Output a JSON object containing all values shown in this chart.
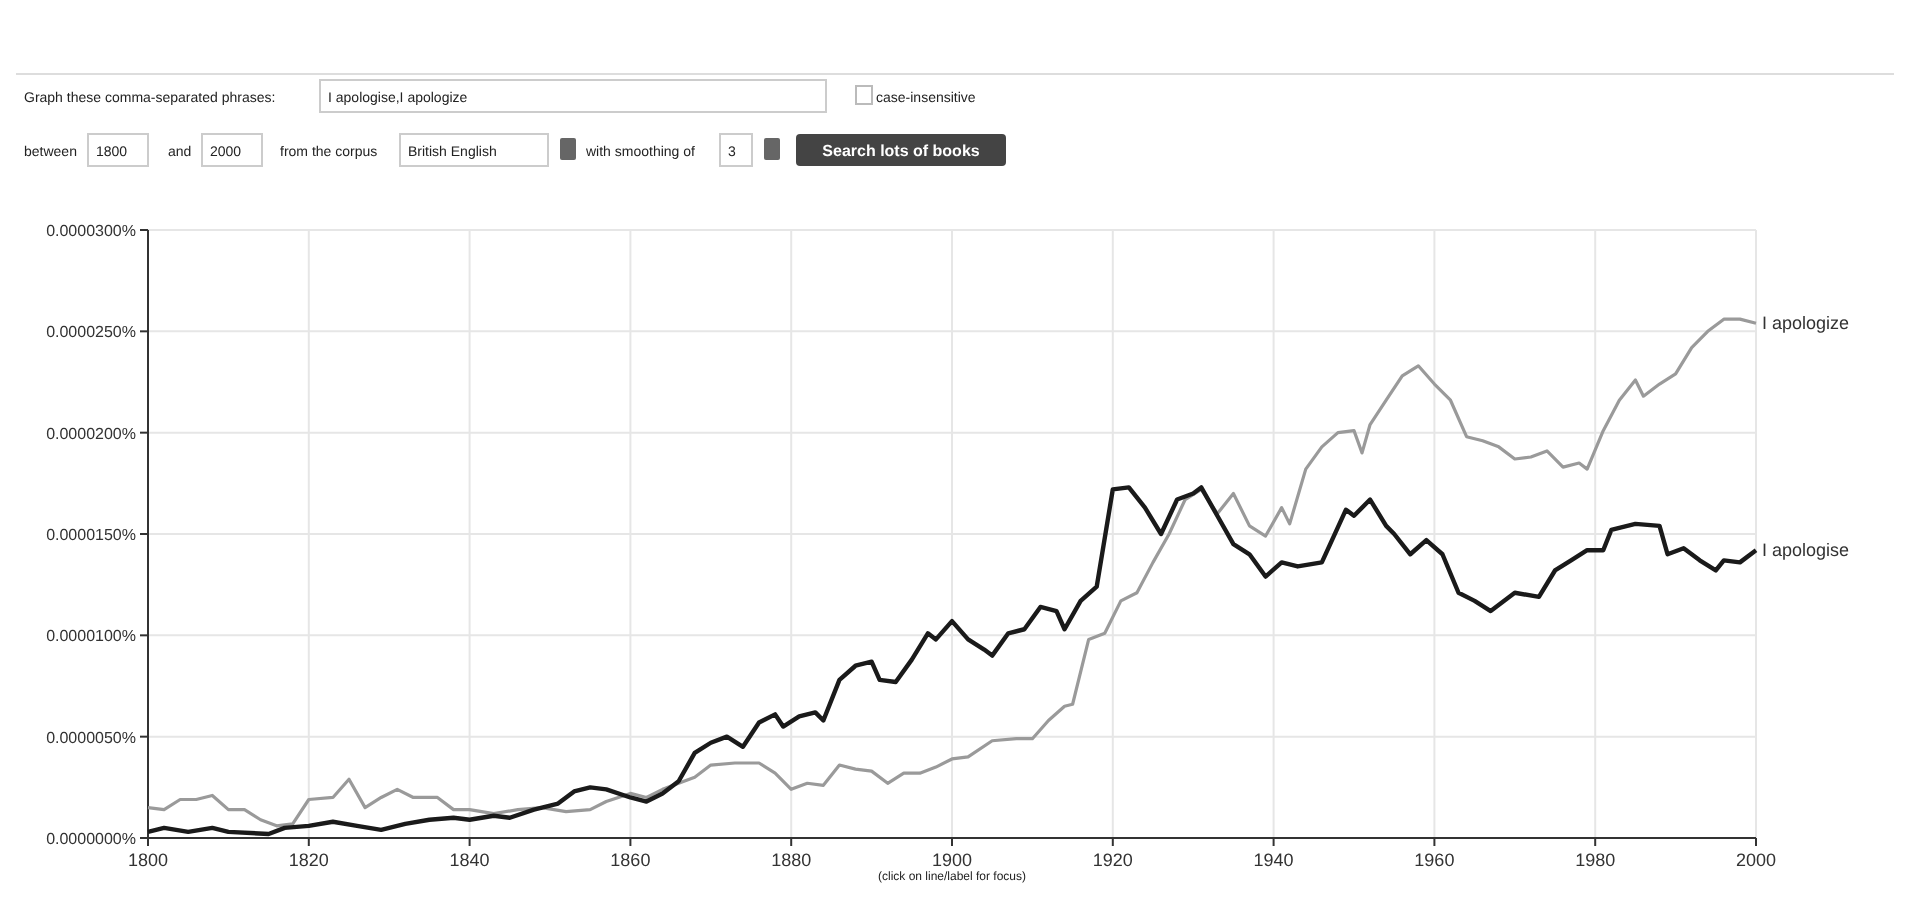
{
  "chart_data": {
    "type": "line",
    "annotations": [
      "Graph these comma-separated phrases:",
      "I apologise,I apologize",
      "case-insensitive",
      "between",
      "1800",
      "and",
      "2000",
      "from the corpus",
      "British English",
      "with smoothing of",
      "3",
      "Search lots of books",
      "(click on line/label for focus)"
    ],
    "xlim": [
      1800,
      2000
    ],
    "xticks": [
      1800,
      1820,
      1840,
      1860,
      1880,
      1900,
      1920,
      1940,
      1960,
      1980,
      2000
    ],
    "ylim": [
      0,
      3e-05
    ],
    "yticks": [
      {
        "value": 0,
        "label": "0.0000000%"
      },
      {
        "value": 5e-06,
        "label": "0.0000050%"
      },
      {
        "value": 1e-05,
        "label": "0.0000100%"
      },
      {
        "value": 1.5e-05,
        "label": "0.0000150%"
      },
      {
        "value": 2e-05,
        "label": "0.0000200%"
      },
      {
        "value": 2.5e-05,
        "label": "0.0000250%"
      },
      {
        "value": 3e-05,
        "label": "0.0000300%"
      }
    ],
    "grid": true,
    "legend": false,
    "series": [
      {
        "name": "I apologize",
        "color": "#9a9a9a",
        "x": [
          1800,
          1802,
          1804,
          1806,
          1808,
          1810,
          1812,
          1814,
          1816,
          1818,
          1820,
          1823,
          1825,
          1827,
          1829,
          1831,
          1833,
          1836,
          1838,
          1840,
          1843,
          1846,
          1849,
          1852,
          1855,
          1857,
          1860,
          1862,
          1864,
          1866,
          1868,
          1870,
          1873,
          1876,
          1878,
          1880,
          1882,
          1884,
          1886,
          1888,
          1890,
          1892,
          1894,
          1896,
          1898,
          1900,
          1902,
          1905,
          1908,
          1910,
          1912,
          1914,
          1915,
          1917,
          1919,
          1921,
          1923,
          1925,
          1927,
          1929,
          1931,
          1933,
          1935,
          1937,
          1939,
          1941,
          1942,
          1944,
          1946,
          1948,
          1950,
          1951,
          1952,
          1954,
          1956,
          1958,
          1960,
          1962,
          1964,
          1966,
          1968,
          1970,
          1972,
          1974,
          1976,
          1978,
          1979,
          1981,
          1983,
          1985,
          1986,
          1988,
          1990,
          1992,
          1994,
          1996,
          1998,
          2000
        ],
        "values": [
          1.5e-06,
          1.4e-06,
          1.9e-06,
          1.9e-06,
          2.1e-06,
          1.4e-06,
          1.4e-06,
          9e-07,
          6e-07,
          7e-07,
          1.9e-06,
          2e-06,
          2.9e-06,
          1.5e-06,
          2e-06,
          2.4e-06,
          2e-06,
          2e-06,
          1.4e-06,
          1.4e-06,
          1.2e-06,
          1.4e-06,
          1.5e-06,
          1.3e-06,
          1.4e-06,
          1.8e-06,
          2.2e-06,
          2e-06,
          2.4e-06,
          2.7e-06,
          3e-06,
          3.6e-06,
          3.7e-06,
          3.7e-06,
          3.2e-06,
          2.4e-06,
          2.7e-06,
          2.6e-06,
          3.6e-06,
          3.4e-06,
          3.3e-06,
          2.7e-06,
          3.2e-06,
          3.2e-06,
          3.5e-06,
          3.9e-06,
          4e-06,
          4.8e-06,
          4.9e-06,
          4.9e-06,
          5.8e-06,
          6.5e-06,
          6.6e-06,
          9.8e-06,
          1.01e-05,
          1.17e-05,
          1.21e-05,
          1.36e-05,
          1.5e-05,
          1.67e-05,
          1.72e-05,
          1.6e-05,
          1.7e-05,
          1.54e-05,
          1.49e-05,
          1.63e-05,
          1.55e-05,
          1.82e-05,
          1.93e-05,
          2e-05,
          2.01e-05,
          1.9e-05,
          2.04e-05,
          2.16e-05,
          2.28e-05,
          2.33e-05,
          2.24e-05,
          2.16e-05,
          1.98e-05,
          1.96e-05,
          1.93e-05,
          1.87e-05,
          1.88e-05,
          1.91e-05,
          1.83e-05,
          1.85e-05,
          1.82e-05,
          2.01e-05,
          2.16e-05,
          2.26e-05,
          2.18e-05,
          2.24e-05,
          2.29e-05,
          2.42e-05,
          2.5e-05,
          2.56e-05,
          2.56e-05,
          2.54e-05
        ]
      },
      {
        "name": "I apologise",
        "color": "#1a1a1a",
        "x": [
          1800,
          1802,
          1805,
          1808,
          1810,
          1815,
          1817,
          1820,
          1823,
          1826,
          1829,
          1832,
          1835,
          1838,
          1840,
          1843,
          1845,
          1848,
          1851,
          1853,
          1855,
          1857,
          1860,
          1862,
          1864,
          1866,
          1868,
          1870,
          1872,
          1874,
          1876,
          1878,
          1879,
          1881,
          1883,
          1884,
          1886,
          1888,
          1890,
          1891,
          1893,
          1895,
          1897,
          1898,
          1900,
          1902,
          1904,
          1905,
          1907,
          1909,
          1911,
          1913,
          1914,
          1916,
          1918,
          1920,
          1922,
          1924,
          1926,
          1928,
          1930,
          1931,
          1933,
          1935,
          1937,
          1939,
          1941,
          1943,
          1946,
          1949,
          1950,
          1952,
          1954,
          1955,
          1957,
          1959,
          1961,
          1963,
          1965,
          1967,
          1970,
          1973,
          1975,
          1977,
          1979,
          1981,
          1982,
          1985,
          1988,
          1989,
          1991,
          1993,
          1995,
          1996,
          1998,
          2000
        ],
        "values": [
          3e-07,
          5e-07,
          3e-07,
          5e-07,
          3e-07,
          2e-07,
          5e-07,
          6e-07,
          8e-07,
          6e-07,
          4e-07,
          7e-07,
          9e-07,
          1e-06,
          9e-07,
          1.1e-06,
          1e-06,
          1.4e-06,
          1.7e-06,
          2.3e-06,
          2.5e-06,
          2.4e-06,
          2e-06,
          1.8e-06,
          2.2e-06,
          2.8e-06,
          4.2e-06,
          4.7e-06,
          5e-06,
          4.5e-06,
          5.7e-06,
          6.1e-06,
          5.5e-06,
          6e-06,
          6.2e-06,
          5.8e-06,
          7.8e-06,
          8.5e-06,
          8.7e-06,
          7.8e-06,
          7.7e-06,
          8.8e-06,
          1.01e-05,
          9.8e-06,
          1.07e-05,
          9.8e-06,
          9.3e-06,
          9e-06,
          1.01e-05,
          1.03e-05,
          1.14e-05,
          1.12e-05,
          1.03e-05,
          1.17e-05,
          1.24e-05,
          1.72e-05,
          1.73e-05,
          1.63e-05,
          1.5e-05,
          1.67e-05,
          1.7e-05,
          1.73e-05,
          1.59e-05,
          1.45e-05,
          1.4e-05,
          1.29e-05,
          1.36e-05,
          1.34e-05,
          1.36e-05,
          1.62e-05,
          1.59e-05,
          1.67e-05,
          1.54e-05,
          1.5e-05,
          1.4e-05,
          1.47e-05,
          1.4e-05,
          1.21e-05,
          1.17e-05,
          1.12e-05,
          1.21e-05,
          1.19e-05,
          1.32e-05,
          1.37e-05,
          1.42e-05,
          1.42e-05,
          1.52e-05,
          1.55e-05,
          1.54e-05,
          1.4e-05,
          1.43e-05,
          1.37e-05,
          1.32e-05,
          1.37e-05,
          1.36e-05,
          1.42e-05
        ]
      }
    ]
  }
}
